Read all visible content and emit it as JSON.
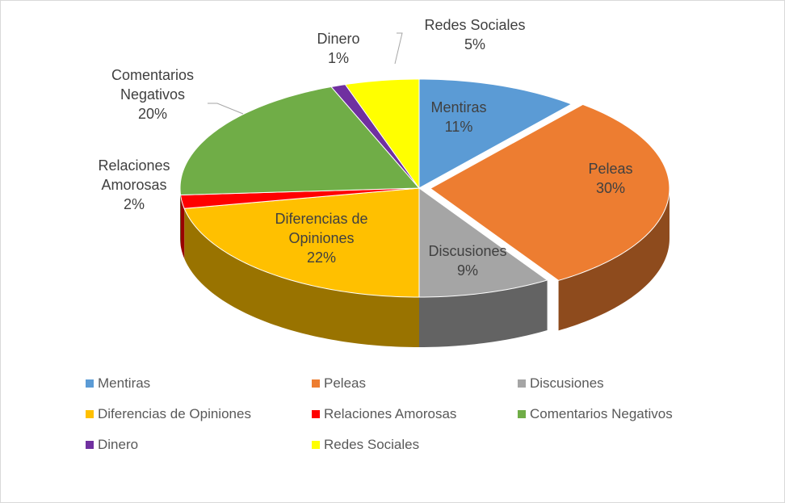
{
  "chart_data": {
    "type": "pie",
    "categories": [
      "Mentiras",
      "Peleas",
      "Discusiones",
      "Diferencias de Opiniones",
      "Relaciones Amorosas",
      "Comentarios Negativos",
      "Dinero",
      "Redes Sociales"
    ],
    "values": [
      11,
      30,
      9,
      22,
      2,
      20,
      1,
      5
    ],
    "value_labels": [
      "11%",
      "30%",
      "9%",
      "22%",
      "2%",
      "20%",
      "1%",
      "5%"
    ],
    "colors": [
      "#5b9bd5",
      "#ed7d31",
      "#a5a5a5",
      "#ffc000",
      "#ff0000",
      "#70ad47",
      "#7030a0",
      "#ffff00"
    ],
    "legend": "bottom"
  }
}
